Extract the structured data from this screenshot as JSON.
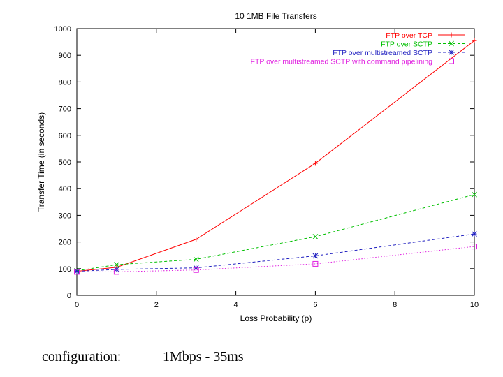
{
  "chart_data": {
    "type": "line",
    "title": "10 1MB File Transfers",
    "xlabel": "Loss Probability (p)",
    "ylabel": "Transfer Time (in seconds)",
    "xlim": [
      0,
      10
    ],
    "ylim": [
      0,
      1000
    ],
    "xticks": [
      0,
      2,
      4,
      6,
      8,
      10
    ],
    "yticks": [
      0,
      100,
      200,
      300,
      400,
      500,
      600,
      700,
      800,
      900,
      1000
    ],
    "legend_position": "top-right",
    "x": [
      0,
      1,
      3,
      6,
      10
    ],
    "series": [
      {
        "name": "FTP over TCP",
        "color": "#ff0000",
        "marker": "plus",
        "dash": "solid",
        "values": [
          90,
          105,
          210,
          495,
          955
        ]
      },
      {
        "name": "FTP over SCTP",
        "color": "#00c000",
        "marker": "cross",
        "dash": "dashed",
        "values": [
          92,
          115,
          135,
          220,
          378
        ]
      },
      {
        "name": "FTP over multistreamed SCTP",
        "color": "#2020c0",
        "marker": "star",
        "dash": "dashed",
        "values": [
          90,
          97,
          103,
          148,
          230
        ]
      },
      {
        "name": "FTP over multistreamed SCTP with command pipelining",
        "color": "#e020e0",
        "marker": "square",
        "dash": "dotted",
        "values": [
          88,
          88,
          95,
          118,
          183
        ]
      }
    ]
  },
  "caption": {
    "label": "configuration:",
    "value": "1Mbps  - 35ms"
  }
}
